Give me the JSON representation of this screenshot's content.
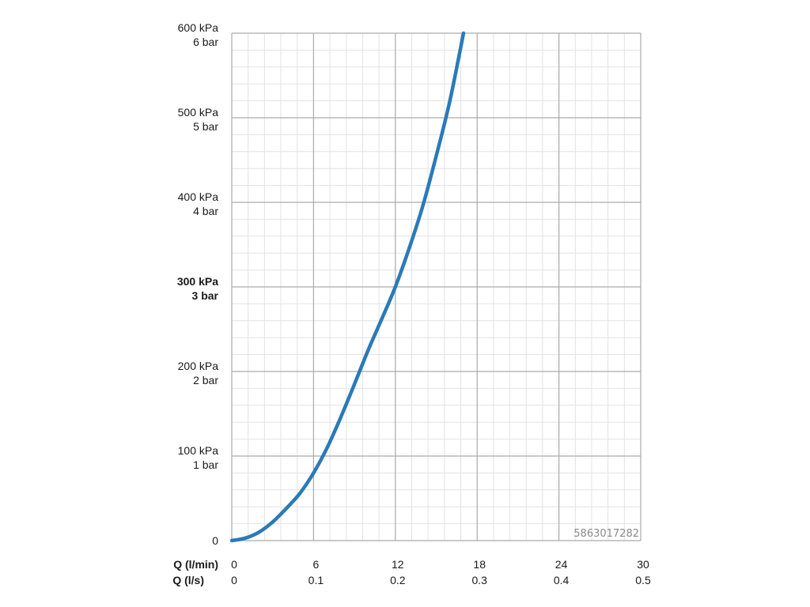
{
  "chart_data": {
    "type": "line",
    "y_ticks": [
      {
        "value": 0,
        "kpa": "0",
        "bar": "",
        "bold": false
      },
      {
        "value": 100,
        "kpa": "100 kPa",
        "bar": "1 bar",
        "bold": false
      },
      {
        "value": 200,
        "kpa": "200 kPa",
        "bar": "2 bar",
        "bold": false
      },
      {
        "value": 300,
        "kpa": "300 kPa",
        "bar": "3 bar",
        "bold": true
      },
      {
        "value": 400,
        "kpa": "400 kPa",
        "bar": "4 bar",
        "bold": false
      },
      {
        "value": 500,
        "kpa": "500 kPa",
        "bar": "5 bar",
        "bold": false
      },
      {
        "value": 600,
        "kpa": "600 kPa",
        "bar": "6 bar",
        "bold": false
      }
    ],
    "x_ticks": [
      {
        "value": 0,
        "lmin": "0",
        "ls": "0"
      },
      {
        "value": 6,
        "lmin": "6",
        "ls": "0.1"
      },
      {
        "value": 12,
        "lmin": "12",
        "ls": "0.2"
      },
      {
        "value": 18,
        "lmin": "18",
        "ls": "0.3"
      },
      {
        "value": 24,
        "lmin": "24",
        "ls": "0.4"
      },
      {
        "value": 30,
        "lmin": "30",
        "ls": "0.5"
      }
    ],
    "xlabel_primary": "Q (l/min)",
    "xlabel_secondary": "Q (l/s)",
    "xlim": [
      0,
      30
    ],
    "ylim": [
      0,
      600
    ],
    "grid": true,
    "series": [
      {
        "color": "#2a7ab8",
        "x": [
          0,
          1,
          2,
          3,
          4,
          5,
          6,
          7,
          8,
          9,
          10,
          11,
          12,
          13,
          14,
          15,
          16,
          17.0
        ],
        "y": [
          0,
          3,
          10,
          22,
          38,
          56,
          80,
          110,
          146,
          185,
          225,
          262,
          300,
          345,
          395,
          455,
          520,
          600
        ]
      }
    ]
  },
  "product_code": "5863017282"
}
